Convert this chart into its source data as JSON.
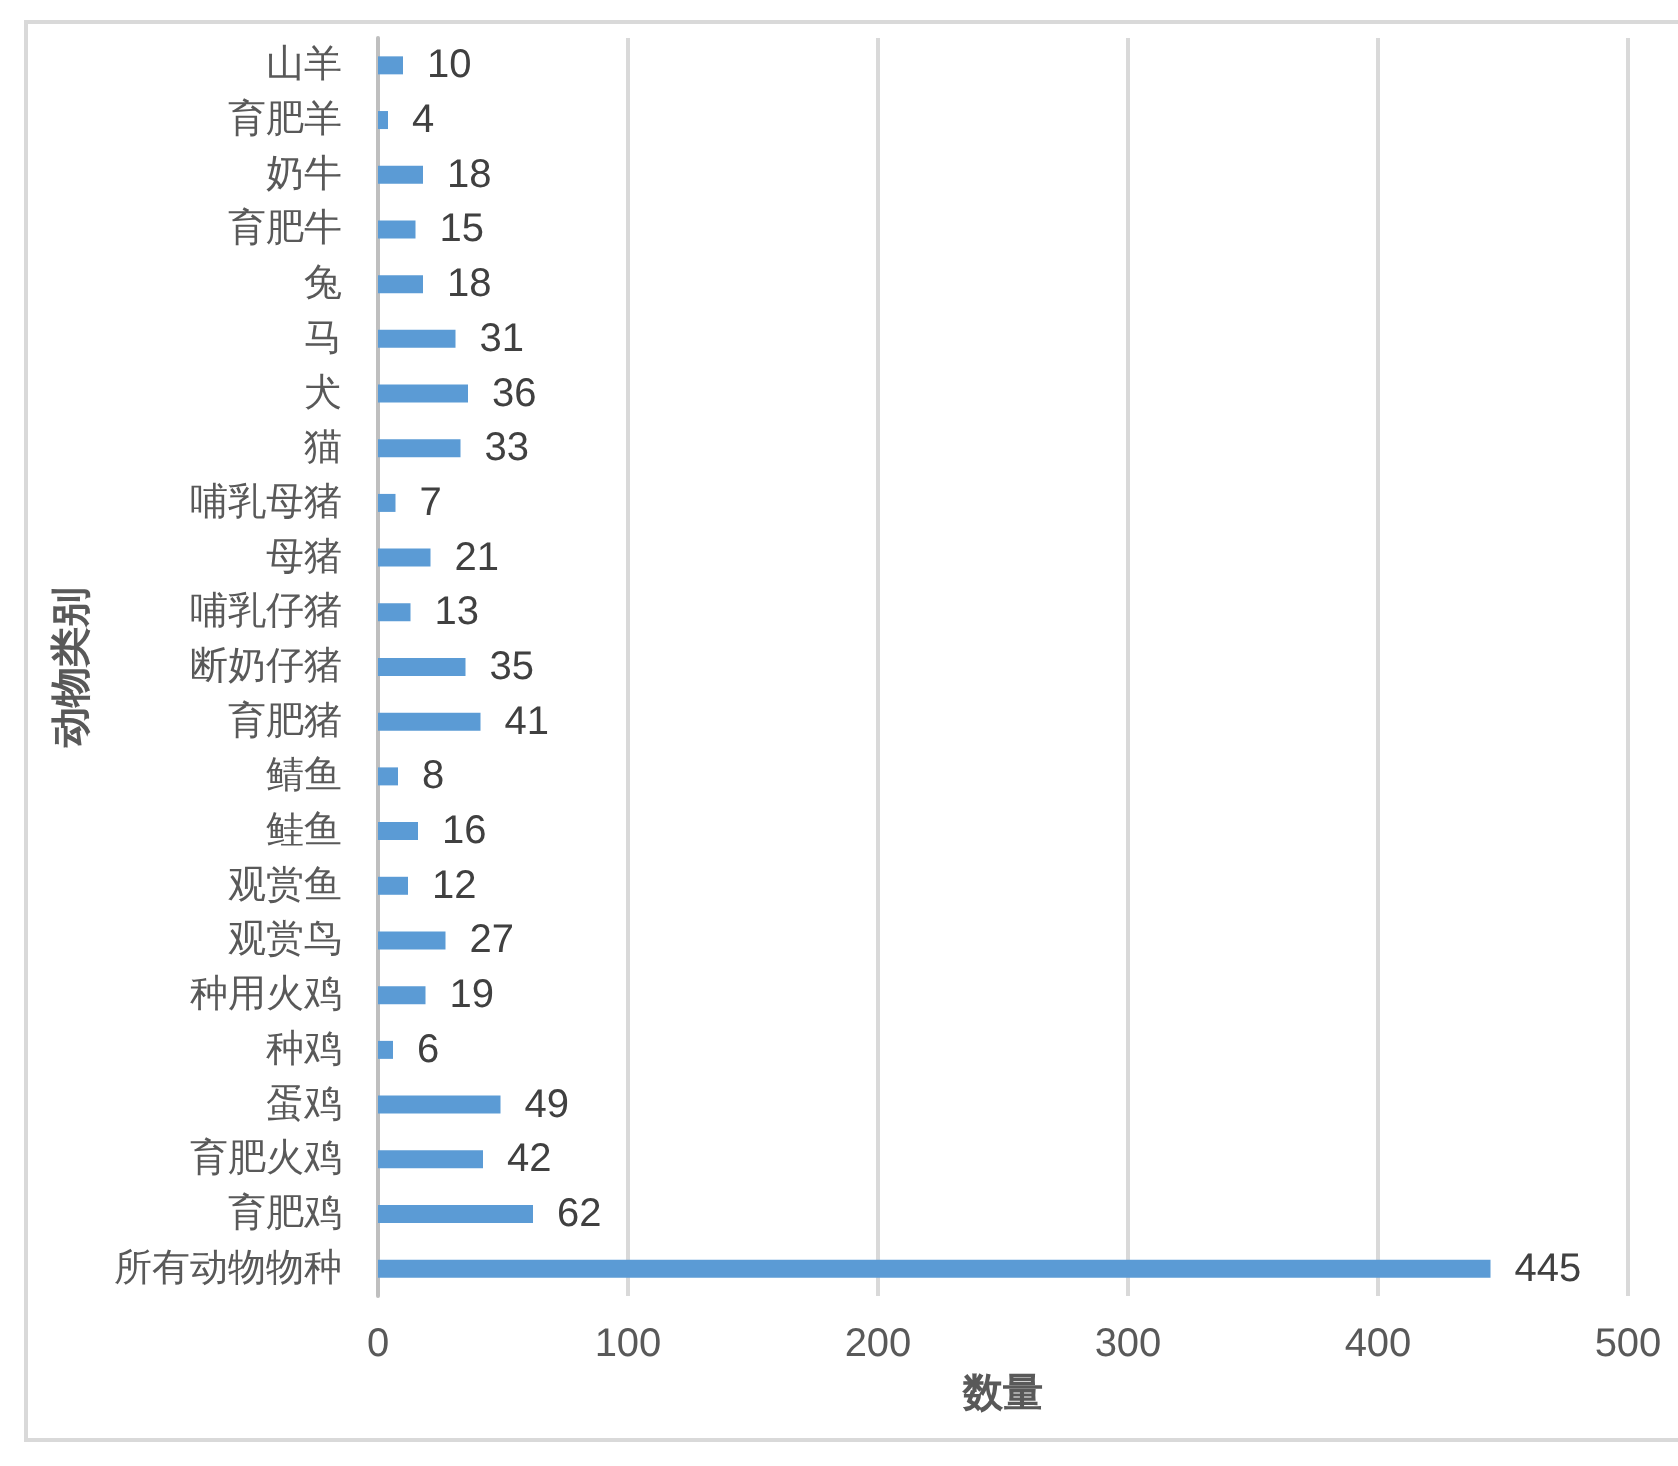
{
  "chart_data": {
    "type": "bar",
    "orientation": "horizontal",
    "categories": [
      "山羊",
      "育肥羊",
      "奶牛",
      "育肥牛",
      "兔",
      "马",
      "犬",
      "猫",
      "哺乳母猪",
      "母猪",
      "哺乳仔猪",
      "断奶仔猪",
      "育肥猪",
      "鲭鱼",
      "鲑鱼",
      "观赏鱼",
      "观赏鸟",
      "种用火鸡",
      "种鸡",
      "蛋鸡",
      "育肥火鸡",
      "育肥鸡",
      "所有动物物种"
    ],
    "values": [
      10,
      4,
      18,
      15,
      18,
      31,
      36,
      33,
      7,
      21,
      13,
      35,
      41,
      8,
      16,
      12,
      27,
      19,
      6,
      49,
      42,
      62,
      445
    ],
    "color": "#5b9bd5",
    "xlim": [
      0,
      500
    ],
    "xticks": [
      0,
      100,
      200,
      300,
      400,
      500
    ],
    "xlabel": "数量",
    "ylabel": "动物类别",
    "data_labels": true,
    "grid": "x"
  }
}
